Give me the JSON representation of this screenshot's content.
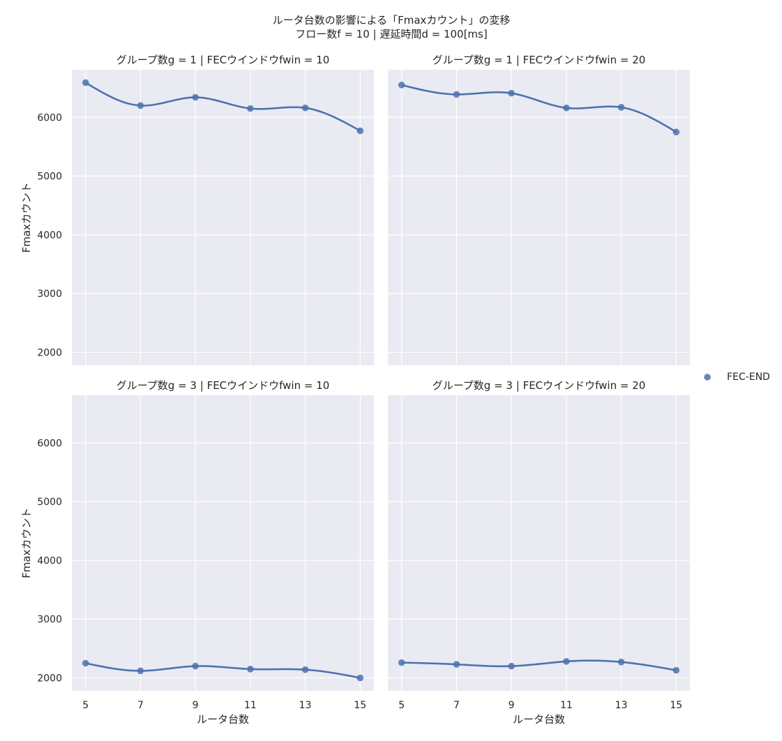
{
  "chart_data": {
    "type": "scatter",
    "title_line1": "ルータ台数の影響による「Fmaxカウント」の変移",
    "title_line2": "フロー数f = 10 | 遅延時間d = 100[ms]",
    "xlabel": "ルータ台数",
    "ylabel": "Fmaxカウント",
    "x_ticks": [
      5,
      7,
      9,
      11,
      13,
      15
    ],
    "y_ticks": [
      2000,
      3000,
      4000,
      5000,
      6000
    ],
    "xlim": [
      4.5,
      15.5
    ],
    "ylim": [
      1780,
      6810
    ],
    "grid": true,
    "legend": {
      "position": "right",
      "entries": [
        "FEC-END"
      ]
    },
    "colors": {
      "series": "#4c72b0",
      "panel_bg": "#eaeaf2",
      "grid": "#ffffff"
    },
    "panels": [
      {
        "title": "グループ数g = 1 | FECウインドウfwin = 10",
        "series": [
          {
            "name": "FEC-END",
            "x": [
              5,
              7,
              9,
              11,
              13,
              15
            ],
            "y": [
              6590,
              6200,
              6340,
              6150,
              6160,
              5770
            ]
          }
        ]
      },
      {
        "title": "グループ数g = 1 | FECウインドウfwin = 20",
        "series": [
          {
            "name": "FEC-END",
            "x": [
              5,
              7,
              9,
              11,
              13,
              15
            ],
            "y": [
              6550,
              6390,
              6410,
              6160,
              6170,
              5750
            ]
          }
        ]
      },
      {
        "title": "グループ数g = 3 | FECウインドウfwin = 10",
        "series": [
          {
            "name": "FEC-END",
            "x": [
              5,
              7,
              9,
              11,
              13,
              15
            ],
            "y": [
              2250,
              2120,
              2200,
              2150,
              2140,
              2000
            ]
          }
        ]
      },
      {
        "title": "グループ数g = 3 | FECウインドウfwin = 20",
        "series": [
          {
            "name": "FEC-END",
            "x": [
              5,
              7,
              9,
              11,
              13,
              15
            ],
            "y": [
              2260,
              2230,
              2200,
              2280,
              2270,
              2130
            ]
          }
        ]
      }
    ]
  }
}
